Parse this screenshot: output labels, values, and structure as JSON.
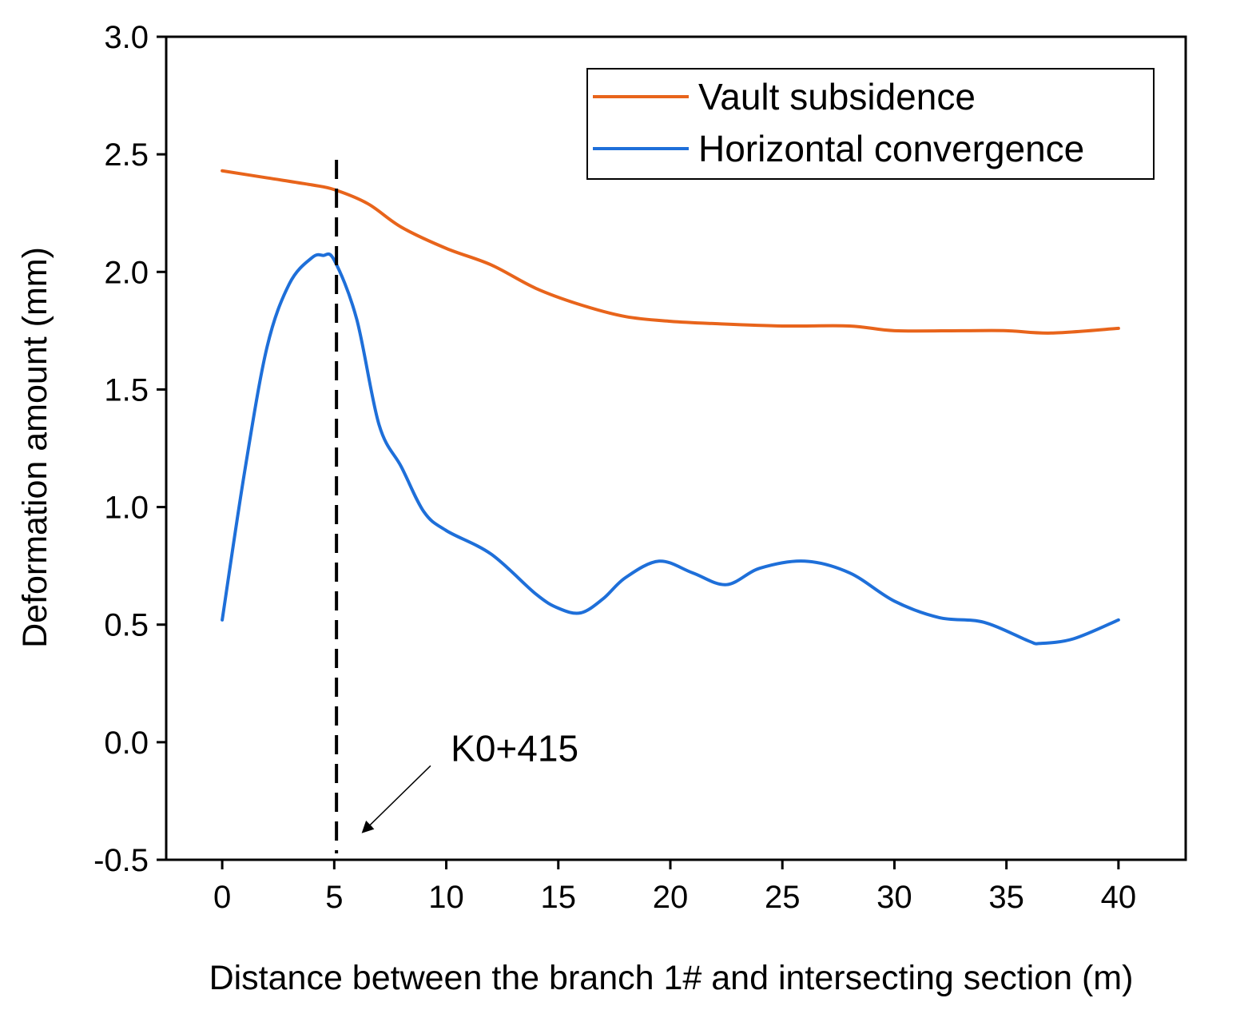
{
  "chart_data": {
    "type": "line",
    "title": "",
    "xlabel": "Distance between the branch 1# and intersecting section (m)",
    "ylabel": "Deformation amount (mm)",
    "xlim": [
      -2.5,
      43
    ],
    "ylim": [
      -0.5,
      3.0
    ],
    "xticks": [
      0,
      5,
      10,
      15,
      20,
      25,
      30,
      35,
      40
    ],
    "xtick_labels": [
      "0",
      "5",
      "10",
      "15",
      "20",
      "25",
      "30",
      "35",
      "40"
    ],
    "yticks": [
      -0.5,
      0.0,
      0.5,
      1.0,
      1.5,
      2.0,
      2.5,
      3.0
    ],
    "ytick_labels": [
      "-0.5",
      "0.0",
      "0.5",
      "1.0",
      "1.5",
      "2.0",
      "2.5",
      "3.0"
    ],
    "grid": false,
    "legend_position": "top-right",
    "series": [
      {
        "name": "Vault subsidence",
        "color": "#e8641b",
        "x": [
          0,
          2,
          4,
          5,
          6.5,
          8,
          10,
          12,
          14,
          16,
          18,
          20,
          22,
          25,
          28,
          30,
          33,
          35,
          37,
          40
        ],
        "values": [
          2.43,
          2.4,
          2.37,
          2.35,
          2.29,
          2.19,
          2.1,
          2.03,
          1.93,
          1.86,
          1.81,
          1.79,
          1.78,
          1.77,
          1.77,
          1.75,
          1.75,
          1.75,
          1.74,
          1.76
        ]
      },
      {
        "name": "Horizontal convergence",
        "color": "#1e6fd9",
        "x": [
          0,
          1,
          2,
          3,
          4,
          4.5,
          5,
          6,
          7,
          8,
          9,
          10,
          12,
          14,
          15,
          16,
          17,
          18,
          19.5,
          21,
          22.5,
          24,
          26,
          28,
          30,
          32,
          34,
          36,
          36.5,
          38,
          40
        ],
        "values": [
          0.52,
          1.15,
          1.68,
          1.95,
          2.06,
          2.07,
          2.05,
          1.8,
          1.35,
          1.17,
          0.98,
          0.9,
          0.8,
          0.63,
          0.57,
          0.55,
          0.61,
          0.7,
          0.77,
          0.72,
          0.67,
          0.74,
          0.77,
          0.72,
          0.6,
          0.53,
          0.51,
          0.43,
          0.42,
          0.44,
          0.52
        ]
      }
    ],
    "reference_line": {
      "x": 5.1,
      "style": "dashed",
      "color": "#000000"
    },
    "annotations": [
      {
        "text": "K0+415",
        "x": 10.2,
        "y": -0.08,
        "arrow_from": [
          9.3,
          -0.1
        ],
        "arrow_to": [
          6.3,
          -0.38
        ]
      }
    ]
  }
}
